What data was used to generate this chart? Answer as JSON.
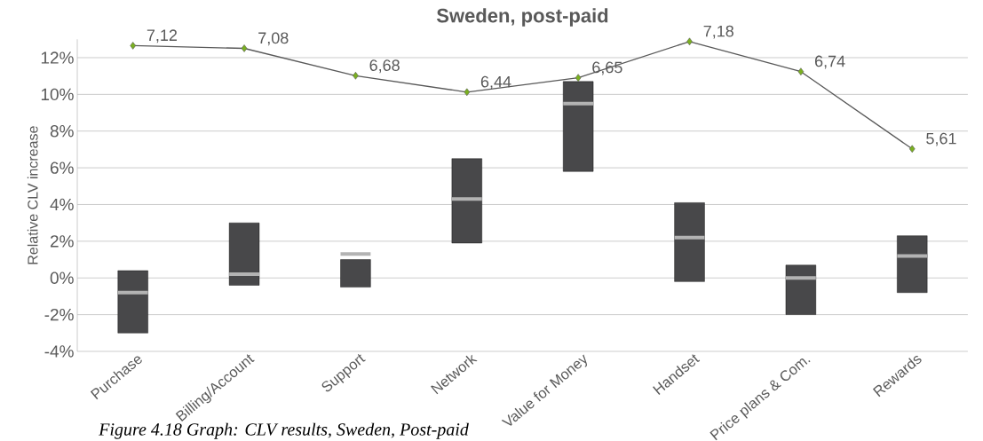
{
  "chart_data": {
    "type": "box",
    "title": "Sweden, post-paid",
    "ylabel": "Relative CLV increase",
    "annotations": [
      "Figure 4.18 Graph: CLV results, Sweden, Post-paid"
    ],
    "categories": [
      "Purchase",
      "Billing/Account",
      "Support",
      "Network",
      "Value for Money",
      "Handset",
      "Price plans & Com.",
      "Rewards"
    ],
    "ylim": [
      -4,
      13
    ],
    "yticks": [
      {
        "value": -4,
        "label": "-4%"
      },
      {
        "value": -2,
        "label": "-2%"
      },
      {
        "value": 0,
        "label": "0%"
      },
      {
        "value": 2,
        "label": "2%"
      },
      {
        "value": 4,
        "label": "4%"
      },
      {
        "value": 6,
        "label": "6%"
      },
      {
        "value": 8,
        "label": "8%"
      },
      {
        "value": 10,
        "label": "10%"
      },
      {
        "value": 12,
        "label": "12%"
      }
    ],
    "grid": "y",
    "tick_labels": "xy",
    "series": [
      {
        "color": "#48484a",
        "boxes": [
          {
            "low": -3.0,
            "q1": -3.0,
            "median": -0.8,
            "q3": 0.4,
            "high": 0.4
          },
          {
            "low": -0.4,
            "q1": -0.4,
            "median": 0.2,
            "q3": 3.0,
            "high": 3.0
          },
          {
            "low": -0.5,
            "q1": -0.5,
            "median": 1.3,
            "q3": 1.0,
            "high": 1.0
          },
          {
            "low": 1.9,
            "q1": 1.9,
            "median": 4.3,
            "q3": 6.5,
            "high": 6.5
          },
          {
            "low": 5.8,
            "q1": 5.8,
            "median": 9.5,
            "q3": 10.7,
            "high": 10.7
          },
          {
            "low": -0.2,
            "q1": -0.2,
            "median": 2.2,
            "q3": 4.1,
            "high": 4.1
          },
          {
            "low": -2.0,
            "q1": -2.0,
            "median": 0.0,
            "q3": 0.7,
            "high": 0.7
          },
          {
            "low": -0.8,
            "q1": -0.8,
            "median": 1.2,
            "q3": 2.3,
            "high": 2.3
          }
        ]
      },
      {
        "type": "line",
        "axis": "y2",
        "color": "#595959",
        "marker": "diamond",
        "line_style": "solid",
        "values": [
          7.12,
          7.08,
          6.68,
          6.44,
          6.65,
          7.18,
          6.74,
          5.61
        ],
        "value_labels": [
          "7,12",
          "7,08",
          "6,68",
          "6,44",
          "6,65",
          "7,18",
          "6,74",
          "5,61"
        ]
      }
    ]
  }
}
